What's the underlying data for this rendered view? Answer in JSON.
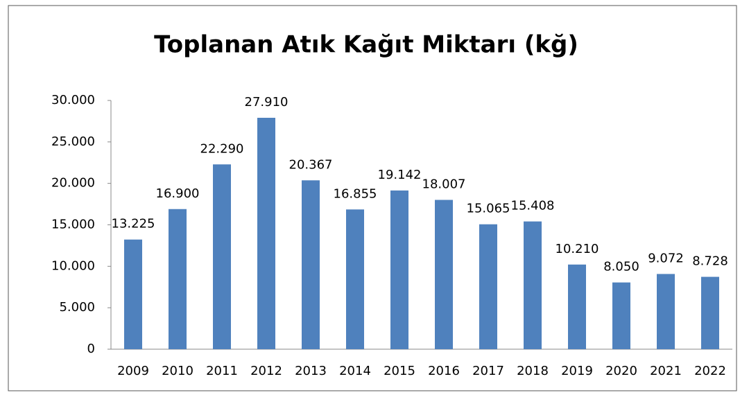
{
  "chart_data": {
    "type": "bar",
    "title": "Toplanan Atık Kağıt Miktarı  (kğ)",
    "categories": [
      "2009",
      "2010",
      "2011",
      "2012",
      "2013",
      "2014",
      "2015",
      "2016",
      "2017",
      "2018",
      "2019",
      "2020",
      "2021",
      "2022"
    ],
    "values": [
      13225,
      16900,
      22290,
      27910,
      20367,
      16855,
      19142,
      18007,
      15065,
      15408,
      10210,
      8050,
      9072,
      8728
    ],
    "value_labels": [
      "13.225",
      "16.900",
      "22.290",
      "27.910",
      "20.367",
      "16.855",
      "19.142",
      "18.007",
      "15.065",
      "15.408",
      "10.210",
      "8.050",
      "9.072",
      "8.728"
    ],
    "color": "#4f81bd",
    "ylim": [
      0,
      30000
    ],
    "yticks": [
      0,
      {
        "value": 5000,
        "label": "5.000"
      },
      {
        "value": 10000,
        "label": "10.000"
      },
      {
        "value": 15000,
        "label": "15.000"
      },
      {
        "value": 20000,
        "label": "20.000"
      },
      {
        "value": 25000,
        "label": "25.000"
      },
      {
        "value": 30000,
        "label": "30.000"
      }
    ],
    "grid": false
  }
}
